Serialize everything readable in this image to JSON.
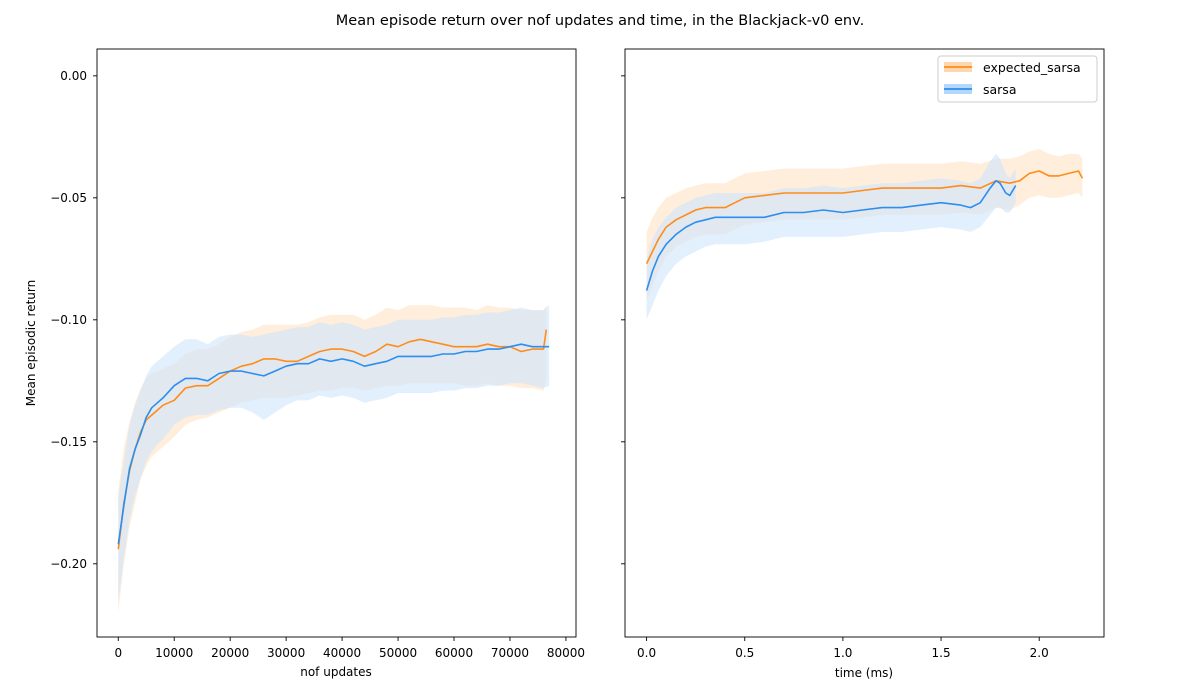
{
  "figure": {
    "title": "Mean episode return over nof updates and time, in the Blackjack-v0 env."
  },
  "colors": {
    "expected_sarsa": "#ff8c1a",
    "sarsa": "#2b8ef0",
    "expected_sarsa_band": "#ffe3c4",
    "sarsa_band": "#cfe5fb"
  },
  "chart_data": [
    {
      "type": "line",
      "panel": "left",
      "xlabel": "nof updates",
      "ylabel": "Mean episodic return",
      "xlim": [
        -3800,
        81800
      ],
      "ylim": [
        -0.23,
        0.011
      ],
      "xticks": [
        0,
        10000,
        20000,
        30000,
        40000,
        50000,
        60000,
        70000,
        80000
      ],
      "xtick_labels": [
        "0",
        "10000",
        "20000",
        "30000",
        "40000",
        "50000",
        "60000",
        "70000",
        "80000"
      ],
      "yticks": [
        0.0,
        -0.05,
        -0.1,
        -0.15,
        -0.2
      ],
      "ytick_labels": [
        "0.00",
        "−0.05",
        "−0.10",
        "−0.15",
        "−0.20"
      ],
      "grid": false,
      "series": [
        {
          "name": "expected_sarsa",
          "x": [
            0,
            1000,
            2000,
            3000,
            4000,
            5000,
            6000,
            7000,
            8000,
            10000,
            12000,
            14000,
            16000,
            18000,
            20000,
            22000,
            24000,
            26000,
            28000,
            30000,
            32000,
            34000,
            36000,
            38000,
            40000,
            42000,
            44000,
            46000,
            48000,
            50000,
            52000,
            54000,
            56000,
            58000,
            60000,
            62000,
            64000,
            66000,
            68000,
            70000,
            72000,
            74000,
            76000,
            76500
          ],
          "y": [
            -0.194,
            -0.175,
            -0.162,
            -0.153,
            -0.146,
            -0.141,
            -0.139,
            -0.137,
            -0.135,
            -0.133,
            -0.128,
            -0.127,
            -0.127,
            -0.124,
            -0.121,
            -0.119,
            -0.118,
            -0.116,
            -0.116,
            -0.117,
            -0.117,
            -0.115,
            -0.113,
            -0.112,
            -0.112,
            -0.113,
            -0.115,
            -0.113,
            -0.11,
            -0.111,
            -0.109,
            -0.108,
            -0.109,
            -0.11,
            -0.111,
            -0.111,
            -0.111,
            -0.11,
            -0.111,
            -0.111,
            -0.113,
            -0.112,
            -0.112,
            -0.104
          ],
          "lower": [
            -0.22,
            -0.2,
            -0.185,
            -0.175,
            -0.165,
            -0.16,
            -0.156,
            -0.154,
            -0.152,
            -0.148,
            -0.143,
            -0.141,
            -0.14,
            -0.138,
            -0.136,
            -0.134,
            -0.133,
            -0.132,
            -0.132,
            -0.132,
            -0.131,
            -0.13,
            -0.129,
            -0.129,
            -0.128,
            -0.128,
            -0.129,
            -0.128,
            -0.127,
            -0.127,
            -0.126,
            -0.126,
            -0.126,
            -0.126,
            -0.126,
            -0.127,
            -0.127,
            -0.126,
            -0.127,
            -0.127,
            -0.128,
            -0.128,
            -0.129,
            -0.124
          ],
          "upper": [
            -0.17,
            -0.152,
            -0.142,
            -0.134,
            -0.128,
            -0.124,
            -0.122,
            -0.121,
            -0.12,
            -0.118,
            -0.114,
            -0.112,
            -0.112,
            -0.11,
            -0.107,
            -0.105,
            -0.104,
            -0.102,
            -0.102,
            -0.102,
            -0.102,
            -0.101,
            -0.099,
            -0.098,
            -0.098,
            -0.098,
            -0.1,
            -0.098,
            -0.095,
            -0.096,
            -0.094,
            -0.094,
            -0.094,
            -0.095,
            -0.095,
            -0.095,
            -0.096,
            -0.094,
            -0.095,
            -0.095,
            -0.096,
            -0.096,
            -0.096,
            -0.094
          ]
        },
        {
          "name": "sarsa",
          "x": [
            0,
            1000,
            2000,
            3000,
            4000,
            5000,
            6000,
            7000,
            8000,
            10000,
            12000,
            14000,
            16000,
            18000,
            20000,
            22000,
            24000,
            26000,
            28000,
            30000,
            32000,
            34000,
            36000,
            38000,
            40000,
            42000,
            44000,
            46000,
            48000,
            50000,
            52000,
            54000,
            56000,
            58000,
            60000,
            62000,
            64000,
            66000,
            68000,
            70000,
            72000,
            74000,
            76000,
            77000
          ],
          "y": [
            -0.192,
            -0.176,
            -0.161,
            -0.153,
            -0.147,
            -0.14,
            -0.136,
            -0.134,
            -0.132,
            -0.127,
            -0.124,
            -0.124,
            -0.125,
            -0.122,
            -0.121,
            -0.121,
            -0.122,
            -0.123,
            -0.121,
            -0.119,
            -0.118,
            -0.118,
            -0.116,
            -0.117,
            -0.116,
            -0.117,
            -0.119,
            -0.118,
            -0.117,
            -0.115,
            -0.115,
            -0.115,
            -0.115,
            -0.114,
            -0.114,
            -0.113,
            -0.113,
            -0.112,
            -0.112,
            -0.111,
            -0.11,
            -0.111,
            -0.111,
            -0.111
          ],
          "lower": [
            -0.215,
            -0.198,
            -0.182,
            -0.172,
            -0.165,
            -0.158,
            -0.154,
            -0.151,
            -0.149,
            -0.143,
            -0.14,
            -0.139,
            -0.139,
            -0.137,
            -0.136,
            -0.136,
            -0.138,
            -0.141,
            -0.138,
            -0.135,
            -0.133,
            -0.133,
            -0.131,
            -0.132,
            -0.131,
            -0.132,
            -0.134,
            -0.133,
            -0.132,
            -0.13,
            -0.13,
            -0.13,
            -0.13,
            -0.129,
            -0.129,
            -0.128,
            -0.128,
            -0.127,
            -0.127,
            -0.126,
            -0.126,
            -0.127,
            -0.128,
            -0.127
          ],
          "upper": [
            -0.172,
            -0.158,
            -0.143,
            -0.135,
            -0.129,
            -0.123,
            -0.119,
            -0.117,
            -0.115,
            -0.111,
            -0.108,
            -0.108,
            -0.11,
            -0.107,
            -0.106,
            -0.106,
            -0.107,
            -0.106,
            -0.105,
            -0.104,
            -0.103,
            -0.103,
            -0.101,
            -0.102,
            -0.101,
            -0.102,
            -0.104,
            -0.103,
            -0.102,
            -0.1,
            -0.1,
            -0.1,
            -0.1,
            -0.099,
            -0.099,
            -0.098,
            -0.098,
            -0.097,
            -0.097,
            -0.096,
            -0.095,
            -0.096,
            -0.096,
            -0.094
          ]
        }
      ]
    },
    {
      "type": "line",
      "panel": "right",
      "xlabel": "time (ms)",
      "ylabel": "",
      "xlim": [
        -0.11,
        2.33
      ],
      "ylim": [
        -0.23,
        0.011
      ],
      "xticks": [
        0.0,
        0.5,
        1.0,
        1.5,
        2.0
      ],
      "xtick_labels": [
        "0.0",
        "0.5",
        "1.0",
        "1.5",
        "2.0"
      ],
      "yticks": [
        0.0,
        -0.05,
        -0.1,
        -0.15,
        -0.2
      ],
      "ytick_labels": [],
      "grid": false,
      "legend": {
        "position": "top-right",
        "entries": [
          "expected_sarsa",
          "sarsa"
        ]
      },
      "series": [
        {
          "name": "expected_sarsa",
          "x": [
            0.0,
            0.03,
            0.06,
            0.1,
            0.15,
            0.2,
            0.25,
            0.3,
            0.35,
            0.4,
            0.45,
            0.5,
            0.6,
            0.7,
            0.8,
            0.9,
            1.0,
            1.1,
            1.2,
            1.3,
            1.4,
            1.5,
            1.6,
            1.7,
            1.78,
            1.85,
            1.9,
            1.95,
            2.0,
            2.05,
            2.1,
            2.15,
            2.2,
            2.22
          ],
          "y": [
            -0.077,
            -0.072,
            -0.067,
            -0.062,
            -0.059,
            -0.057,
            -0.055,
            -0.054,
            -0.054,
            -0.054,
            -0.052,
            -0.05,
            -0.049,
            -0.048,
            -0.048,
            -0.048,
            -0.048,
            -0.047,
            -0.046,
            -0.046,
            -0.046,
            -0.046,
            -0.045,
            -0.046,
            -0.043,
            -0.044,
            -0.043,
            -0.04,
            -0.039,
            -0.041,
            -0.041,
            -0.04,
            -0.039,
            -0.042
          ],
          "lower": [
            -0.092,
            -0.086,
            -0.08,
            -0.074,
            -0.07,
            -0.068,
            -0.066,
            -0.065,
            -0.065,
            -0.065,
            -0.063,
            -0.061,
            -0.06,
            -0.059,
            -0.059,
            -0.059,
            -0.059,
            -0.058,
            -0.057,
            -0.057,
            -0.057,
            -0.057,
            -0.056,
            -0.057,
            -0.054,
            -0.055,
            -0.053,
            -0.05,
            -0.049,
            -0.05,
            -0.05,
            -0.049,
            -0.048,
            -0.05
          ],
          "upper": [
            -0.064,
            -0.058,
            -0.054,
            -0.05,
            -0.048,
            -0.046,
            -0.045,
            -0.044,
            -0.044,
            -0.044,
            -0.042,
            -0.04,
            -0.039,
            -0.038,
            -0.038,
            -0.038,
            -0.038,
            -0.037,
            -0.036,
            -0.036,
            -0.036,
            -0.036,
            -0.035,
            -0.036,
            -0.034,
            -0.034,
            -0.033,
            -0.031,
            -0.03,
            -0.032,
            -0.033,
            -0.032,
            -0.032,
            -0.034
          ]
        },
        {
          "name": "sarsa",
          "x": [
            0.0,
            0.03,
            0.06,
            0.1,
            0.15,
            0.2,
            0.25,
            0.3,
            0.35,
            0.4,
            0.45,
            0.5,
            0.6,
            0.7,
            0.8,
            0.9,
            1.0,
            1.1,
            1.2,
            1.3,
            1.4,
            1.5,
            1.6,
            1.65,
            1.7,
            1.75,
            1.78,
            1.8,
            1.83,
            1.85,
            1.88
          ],
          "y": [
            -0.088,
            -0.08,
            -0.074,
            -0.069,
            -0.065,
            -0.062,
            -0.06,
            -0.059,
            -0.058,
            -0.058,
            -0.058,
            -0.058,
            -0.058,
            -0.056,
            -0.056,
            -0.055,
            -0.056,
            -0.055,
            -0.054,
            -0.054,
            -0.053,
            -0.052,
            -0.053,
            -0.054,
            -0.052,
            -0.046,
            -0.043,
            -0.044,
            -0.048,
            -0.049,
            -0.045
          ],
          "lower": [
            -0.1,
            -0.094,
            -0.088,
            -0.082,
            -0.077,
            -0.074,
            -0.072,
            -0.07,
            -0.069,
            -0.069,
            -0.069,
            -0.069,
            -0.068,
            -0.066,
            -0.066,
            -0.066,
            -0.066,
            -0.065,
            -0.064,
            -0.064,
            -0.063,
            -0.062,
            -0.063,
            -0.064,
            -0.062,
            -0.057,
            -0.054,
            -0.054,
            -0.056,
            -0.056,
            -0.052
          ],
          "upper": [
            -0.075,
            -0.067,
            -0.062,
            -0.058,
            -0.054,
            -0.052,
            -0.05,
            -0.049,
            -0.048,
            -0.048,
            -0.048,
            -0.048,
            -0.048,
            -0.046,
            -0.046,
            -0.045,
            -0.046,
            -0.045,
            -0.044,
            -0.044,
            -0.043,
            -0.042,
            -0.043,
            -0.044,
            -0.042,
            -0.035,
            -0.032,
            -0.034,
            -0.04,
            -0.042,
            -0.038
          ]
        }
      ]
    }
  ]
}
